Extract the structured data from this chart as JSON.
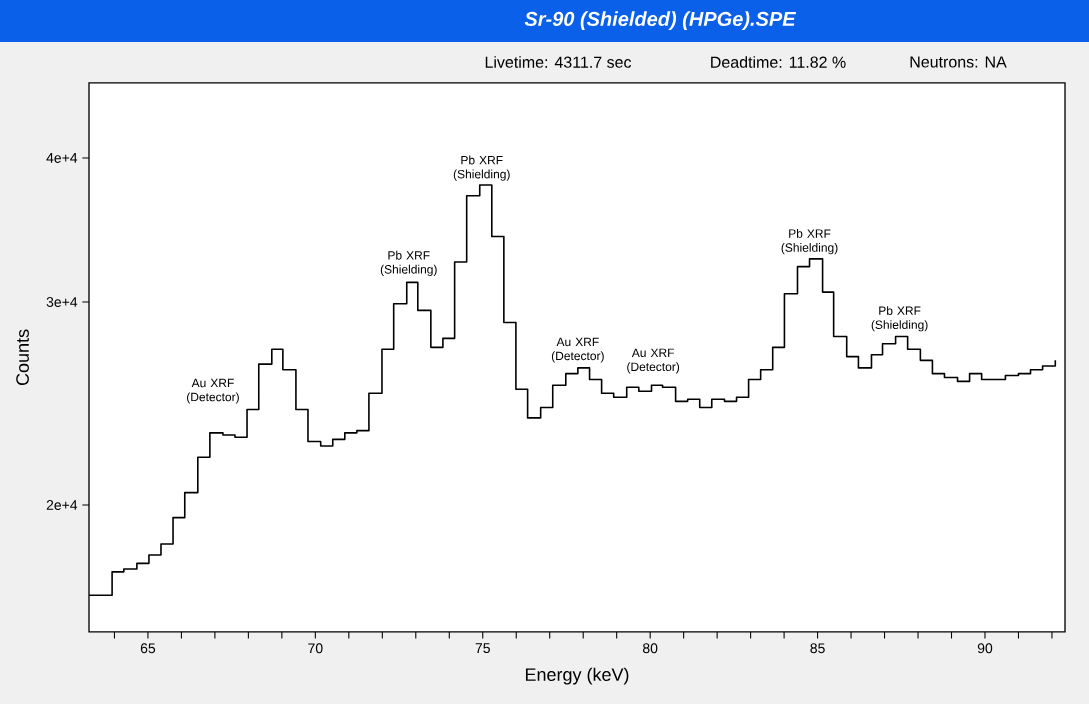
{
  "chart_data": {
    "type": "step",
    "title": "Sr-90 (Shielded) (HPGe).SPE",
    "xlabel": "Energy (keV)",
    "ylabel": "Counts",
    "color": "#000000",
    "log": "y",
    "grid": false,
    "x": [
      63.24,
      63.57,
      63.93,
      64.28,
      64.67,
      65.03,
      65.39,
      65.75,
      66.1,
      66.49,
      66.85,
      67.24,
      67.6,
      67.96,
      68.31,
      68.7,
      69.03,
      69.42,
      69.78,
      70.16,
      70.52,
      70.88,
      71.24,
      71.6,
      71.99,
      72.34,
      72.73,
      73.06,
      73.45,
      73.81,
      74.16,
      74.52,
      74.91,
      75.27,
      75.63,
      75.99,
      76.34,
      76.73,
      77.09,
      77.48,
      77.84,
      78.19,
      78.55,
      78.91,
      79.3,
      79.66,
      80.04,
      80.37,
      80.76,
      81.12,
      81.48,
      81.84,
      82.22,
      82.58,
      82.94,
      83.3,
      83.66,
      84.01,
      84.4,
      84.76,
      85.15,
      85.48,
      85.87,
      86.22,
      86.61,
      86.94,
      87.33,
      87.69,
      88.07,
      88.43,
      88.79,
      89.18,
      89.54,
      89.9,
      90.25,
      90.61,
      91.0,
      91.36,
      91.72,
      92.1
    ],
    "values": [
      16700,
      16700,
      17500,
      17600,
      17800,
      18100,
      18500,
      19500,
      20500,
      22000,
      23100,
      23000,
      22900,
      24200,
      26500,
      27300,
      26200,
      24200,
      22700,
      22500,
      22800,
      23100,
      23200,
      25000,
      27300,
      29900,
      31200,
      29500,
      27400,
      27900,
      32500,
      37100,
      37900,
      34200,
      28800,
      25200,
      23800,
      24300,
      25400,
      26000,
      26300,
      25700,
      25000,
      24800,
      25300,
      25100,
      25400,
      25300,
      24600,
      24700,
      24300,
      24700,
      24600,
      24800,
      25700,
      26200,
      27400,
      30500,
      32200,
      32700,
      30600,
      28000,
      26900,
      26300,
      27000,
      27600,
      28000,
      27300,
      26700,
      26000,
      25800,
      25600,
      26000,
      25700,
      25700,
      25900,
      26000,
      26200,
      26400,
      26700
    ],
    "xlim": [
      63.24,
      92.39
    ],
    "ylim": [
      15520,
      46470
    ],
    "xticks": [
      {
        "value": 64,
        "label": null
      },
      65,
      {
        "value": 66,
        "label": null
      },
      {
        "value": 67,
        "label": null
      },
      {
        "value": 68,
        "label": null
      },
      {
        "value": 69,
        "label": null
      },
      70,
      {
        "value": 71,
        "label": null
      },
      {
        "value": 72,
        "label": null
      },
      {
        "value": 73,
        "label": null
      },
      {
        "value": 74,
        "label": null
      },
      75,
      {
        "value": 76,
        "label": null
      },
      {
        "value": 77,
        "label": null
      },
      {
        "value": 78,
        "label": null
      },
      {
        "value": 79,
        "label": null
      },
      80,
      {
        "value": 81,
        "label": null
      },
      {
        "value": 82,
        "label": null
      },
      {
        "value": 83,
        "label": null
      },
      {
        "value": 84,
        "label": null
      },
      85,
      {
        "value": 86,
        "label": null
      },
      {
        "value": 87,
        "label": null
      },
      {
        "value": 88,
        "label": null
      },
      {
        "value": 89,
        "label": null
      },
      90,
      {
        "value": 91,
        "label": null
      },
      {
        "value": 92,
        "label": null
      }
    ],
    "yticks": [
      {
        "value": 20000,
        "label": "2e+4"
      },
      {
        "value": 30000,
        "label": "3e+4"
      },
      {
        "value": 40000,
        "label": "4e+4"
      }
    ],
    "annotations": [
      "Livetime: 4311.7 sec",
      "Deadtime: 11.82 %",
      "Neutrons: NA",
      "Au XRF (Detector)",
      {
        "text": "Pb XRF (Shielding)",
        "x": 72.79,
        "y": 31500
      },
      {
        "text": "Pb XRF (Shielding)",
        "x": 74.97,
        "y": 38100
      },
      {
        "text": "Au XRF (Detector)",
        "x": 77.84,
        "y": 26500
      },
      "Au XRF (Detector)",
      {
        "text": "Pb XRF (Shielding)",
        "x": 84.76,
        "y": 32900
      },
      {
        "text": "Pb XRF (Shielding)",
        "x": 87.45,
        "y": 28200
      }
    ]
  }
}
